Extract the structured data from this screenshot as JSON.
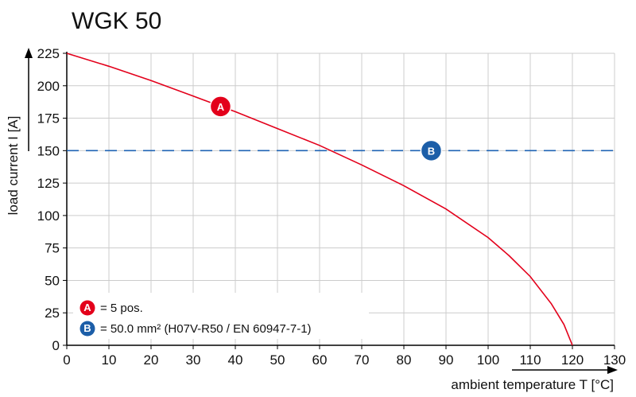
{
  "chart_data": {
    "type": "line",
    "title": "WGK 50",
    "xlabel": "ambient temperature T [°C]",
    "ylabel": "load current I [A]",
    "xlim": [
      0,
      130
    ],
    "ylim": [
      0,
      225
    ],
    "xticks": [
      0,
      10,
      20,
      30,
      40,
      50,
      60,
      70,
      80,
      90,
      100,
      110,
      120,
      130
    ],
    "yticks": [
      0,
      25,
      50,
      75,
      100,
      125,
      150,
      175,
      200,
      225
    ],
    "grid": true,
    "series": [
      {
        "name": "A",
        "label": "= 5 pos.",
        "color": "#e3001b",
        "style": "solid",
        "x": [
          0,
          10,
          20,
          30,
          40,
          50,
          60,
          70,
          80,
          90,
          100,
          105,
          110,
          115,
          118,
          120
        ],
        "y": [
          225,
          215,
          204,
          192,
          180,
          167,
          154,
          139,
          123,
          105,
          83,
          69,
          53,
          32,
          16,
          0
        ]
      },
      {
        "name": "B",
        "label": "= 50.0 mm² (H07V-R50 / EN 60947-7-1)",
        "color": "#1f63b4",
        "style": "dashed",
        "x": [
          0,
          130
        ],
        "y": [
          150,
          150
        ]
      }
    ],
    "markers": [
      {
        "name": "A",
        "x": 36.5,
        "y": 184,
        "color": "#e3001b"
      },
      {
        "name": "B",
        "x": 86.5,
        "y": 150,
        "color": "#1c5ea8"
      }
    ],
    "legend": {
      "position": "bottom-left",
      "items": [
        {
          "marker": "A",
          "text": "= 5 pos.",
          "color": "#e3001b"
        },
        {
          "marker": "B",
          "text": "= 50.0 mm² (H07V-R50 / EN 60947-7-1)",
          "color": "#1c5ea8"
        }
      ]
    }
  }
}
